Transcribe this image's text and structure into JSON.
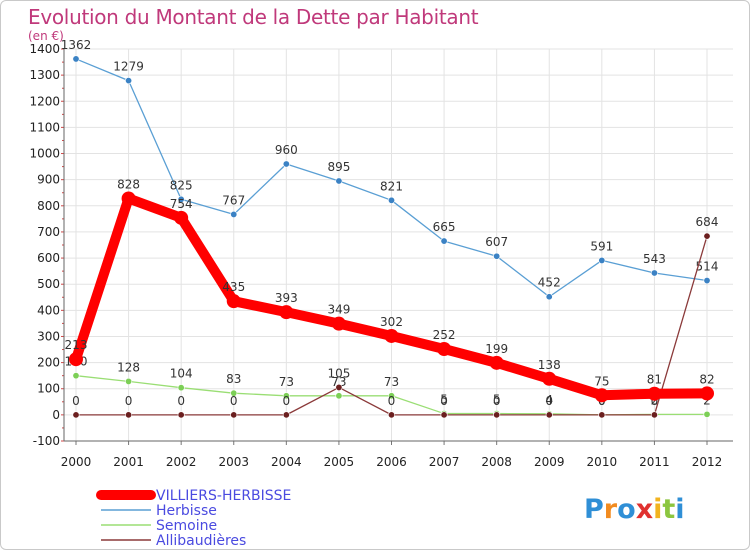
{
  "chart_data": {
    "type": "line",
    "title": "Evolution du Montant de la Dette par Habitant",
    "subtitle": "(en €)",
    "x": [
      2000,
      2001,
      2002,
      2003,
      2004,
      2005,
      2006,
      2007,
      2008,
      2009,
      2010,
      2011,
      2012
    ],
    "ylim": [
      -100,
      1400
    ],
    "yticks": [
      -100,
      0,
      100,
      200,
      300,
      400,
      500,
      600,
      700,
      800,
      900,
      1000,
      1100,
      1200,
      1300,
      1400
    ],
    "grid": true,
    "legend_position": "bottom-left",
    "series": [
      {
        "name": "Herbisse",
        "color": "#5a9fd4",
        "marker": "#3b82c4",
        "values": [
          1362,
          1279,
          825,
          767,
          960,
          895,
          821,
          665,
          607,
          452,
          591,
          543,
          514
        ]
      },
      {
        "name": "Semoine",
        "color": "#9ade74",
        "marker": "#7ccf56",
        "values": [
          150,
          128,
          104,
          83,
          73,
          73,
          73,
          5,
          5,
          4,
          0,
          2,
          2
        ]
      },
      {
        "name": "Allibaudières",
        "color": "#8b3a3a",
        "marker": "#6b1f1f",
        "values": [
          0,
          0,
          0,
          0,
          0,
          105,
          0,
          0,
          0,
          0,
          0,
          0,
          684
        ]
      },
      {
        "name": "VILLIERS-HERBISSE",
        "color": "#ff0000",
        "marker": "#ff0000",
        "thick": true,
        "values": [
          213,
          828,
          754,
          435,
          393,
          349,
          302,
          252,
          199,
          138,
          75,
          81,
          82
        ]
      }
    ],
    "legend_order": [
      "VILLIERS-HERBISSE",
      "Herbisse",
      "Semoine",
      "Allibaudières"
    ]
  },
  "logo": {
    "letters": [
      "P",
      "r",
      "o",
      "x",
      "i",
      "t",
      "i"
    ],
    "colors": [
      "#2f8fd6",
      "#f28b1f",
      "#2f8fd6",
      "#e0312f",
      "#f2b31f",
      "#8cc63f",
      "#2f8fd6"
    ]
  }
}
